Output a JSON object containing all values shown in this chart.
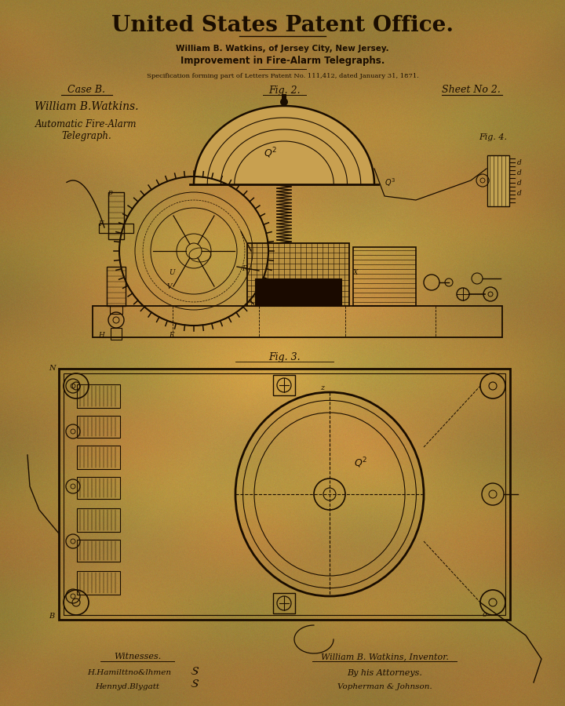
{
  "bg_color": "#D4A857",
  "ink_color": "#1A0D00",
  "title": "United States Patent Office.",
  "subtitle1": "William B. Watkins, of Jersey City, New Jersey.",
  "subtitle2": "Improvement in Fire-Alarm Telegraphs.",
  "subtitle3": "Specification forming part of Letters Patent No. 111,412, dated January 31, 1871.",
  "case_label": "Case B.",
  "fig2_label": "Fig. 2.",
  "fig3_label": "Fig. 3.",
  "fig4_label": "Fig. 4.",
  "sheet_label": "Sheet No 2.",
  "inventor_name": "William B.Watkins.",
  "device_name1": "Automatic Fire-Alarm",
  "device_name2": "Telegraph.",
  "witness_label": "Witnesses.",
  "witness1": "H.Hamilttno&lhmen",
  "witness2": "Hennyd.Blygatt",
  "inventor_label": "William B. Watkins, Inventor.",
  "attorney_label": "By his Attorneys.",
  "attorney_name": "Vopherman & Johnson.",
  "figsize": [
    7.2,
    9.0
  ],
  "dpi": 100
}
